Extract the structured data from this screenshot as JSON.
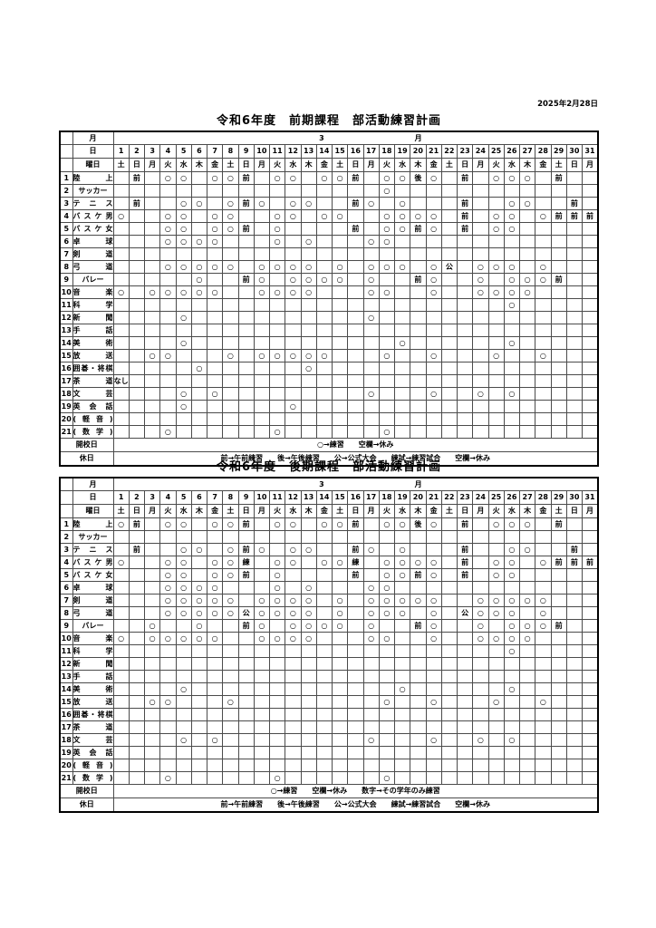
{
  "date_label": "2025年2月28日",
  "labels": {
    "month": "月",
    "day": "日",
    "weekday": "曜日",
    "legend_open": "開校日",
    "legend_holiday": "休日"
  },
  "month": {
    "number": "3",
    "suffix": "月"
  },
  "days": [
    "1",
    "2",
    "3",
    "4",
    "5",
    "6",
    "7",
    "8",
    "9",
    "10",
    "11",
    "12",
    "13",
    "14",
    "15",
    "16",
    "17",
    "18",
    "19",
    "20",
    "21",
    "22",
    "23",
    "24",
    "25",
    "26",
    "27",
    "28",
    "29",
    "30",
    "31"
  ],
  "weekdays": [
    "土",
    "日",
    "月",
    "火",
    "水",
    "木",
    "金",
    "土",
    "日",
    "月",
    "火",
    "水",
    "木",
    "金",
    "土",
    "日",
    "月",
    "火",
    "水",
    "木",
    "金",
    "土",
    "日",
    "月",
    "火",
    "水",
    "木",
    "金",
    "土",
    "日",
    "月"
  ],
  "marks_legend": {
    "circle": "○",
    "morning": "前",
    "afternoon": "後",
    "official": "公",
    "practice_match": "練",
    "none_note": "なし"
  },
  "tables": [
    {
      "title": "令和6年度　前期課程　部活動練習計画",
      "legend_open": "○→練習　　空欄→休み",
      "legend_holiday": "前→午前練習　　後→午後練習　　公→公式大会　　練試→練習試合　　空欄→休み",
      "rows": [
        {
          "num": "1",
          "name": "陸上",
          "align": "justify",
          "cells": {
            "2": "前",
            "4": "○",
            "5": "○",
            "7": "○",
            "8": "○",
            "9": "前",
            "11": "○",
            "12": "○",
            "14": "○",
            "15": "○",
            "16": "前",
            "18": "○",
            "19": "○",
            "20": "後",
            "21": "○",
            "23": "前",
            "25": "○",
            "26": "○",
            "27": "○",
            "29": "前"
          }
        },
        {
          "num": "2",
          "name": "サッカー",
          "align": "center",
          "cells": {
            "18": "○"
          }
        },
        {
          "num": "3",
          "name": "テニス",
          "align": "justify",
          "cells": {
            "2": "前",
            "5": "○",
            "6": "○",
            "8": "○",
            "9": "前",
            "10": "○",
            "12": "○",
            "13": "○",
            "16": "前",
            "17": "○",
            "19": "○",
            "23": "前",
            "26": "○",
            "27": "○",
            "30": "前"
          }
        },
        {
          "num": "4",
          "name": "バスケ男",
          "align": "justify",
          "cells": {
            "1": "○",
            "4": "○",
            "5": "○",
            "7": "○",
            "8": "○",
            "11": "○",
            "12": "○",
            "14": "○",
            "15": "○",
            "18": "○",
            "19": "○",
            "20": "○",
            "21": "○",
            "23": "前",
            "25": "○",
            "26": "○",
            "28": "○",
            "29": "前",
            "30": "前",
            "31": "前"
          }
        },
        {
          "num": "5",
          "name": "バスケ女",
          "align": "justify",
          "cells": {
            "4": "○",
            "5": "○",
            "7": "○",
            "8": "○",
            "9": "前",
            "11": "○",
            "16": "前",
            "18": "○",
            "19": "○",
            "20": "前",
            "21": "○",
            "23": "前",
            "25": "○",
            "26": "○"
          }
        },
        {
          "num": "6",
          "name": "卓球",
          "align": "justify",
          "cells": {
            "4": "○",
            "5": "○",
            "6": "○",
            "7": "○",
            "11": "○",
            "13": "○",
            "17": "○",
            "18": "○"
          }
        },
        {
          "num": "7",
          "name": "剣道",
          "align": "justify",
          "cells": {}
        },
        {
          "num": "8",
          "name": "弓道",
          "align": "justify",
          "cells": {
            "4": "○",
            "5": "○",
            "6": "○",
            "7": "○",
            "8": "○",
            "10": "○",
            "11": "○",
            "12": "○",
            "13": "○",
            "15": "○",
            "17": "○",
            "18": "○",
            "19": "○",
            "21": "○",
            "22": "公",
            "24": "○",
            "25": "○",
            "26": "○",
            "28": "○"
          }
        },
        {
          "num": "9",
          "name": "バレー",
          "align": "center",
          "cells": {
            "6": "○",
            "9": "前",
            "10": "○",
            "12": "○",
            "13": "○",
            "14": "○",
            "15": "○",
            "17": "○",
            "20": "前",
            "21": "○",
            "24": "○",
            "26": "○",
            "27": "○",
            "28": "○",
            "29": "前"
          }
        },
        {
          "num": "10",
          "name": "音楽",
          "align": "justify",
          "cells": {
            "1": "○",
            "3": "○",
            "4": "○",
            "5": "○",
            "6": "○",
            "7": "○",
            "10": "○",
            "11": "○",
            "12": "○",
            "13": "○",
            "17": "○",
            "18": "○",
            "21": "○",
            "24": "○",
            "25": "○",
            "26": "○",
            "27": "○"
          }
        },
        {
          "num": "11",
          "name": "科学",
          "align": "justify",
          "cells": {
            "26": "○"
          }
        },
        {
          "num": "12",
          "name": "新聞",
          "align": "justify",
          "cells": {
            "5": "○",
            "17": "○"
          }
        },
        {
          "num": "13",
          "name": "手話",
          "align": "justify",
          "cells": {}
        },
        {
          "num": "14",
          "name": "美術",
          "align": "justify",
          "cells": {
            "5": "○",
            "19": "○",
            "26": "○"
          }
        },
        {
          "num": "15",
          "name": "放送",
          "align": "justify",
          "cells": {
            "3": "○",
            "4": "○",
            "8": "○",
            "10": "○",
            "11": "○",
            "12": "○",
            "13": "○",
            "14": "○",
            "18": "○",
            "21": "○",
            "25": "○",
            "28": "○"
          }
        },
        {
          "num": "16",
          "name": "囲碁・将棋",
          "align": "justify",
          "cells": {
            "6": "○",
            "13": "○"
          }
        },
        {
          "num": "17",
          "name": "茶道",
          "align": "justify",
          "cells": {
            "1": "なし"
          }
        },
        {
          "num": "18",
          "name": "文芸",
          "align": "justify",
          "cells": {
            "5": "○",
            "7": "○",
            "17": "○",
            "21": "○",
            "24": "○",
            "26": "○"
          }
        },
        {
          "num": "19",
          "name": "英会話",
          "align": "justify",
          "cells": {
            "5": "○",
            "12": "○"
          }
        },
        {
          "num": "20",
          "name": "(軽音)",
          "align": "justify",
          "cells": {}
        },
        {
          "num": "21",
          "name": "(数学)",
          "align": "justify",
          "cells": {
            "4": "○",
            "11": "○",
            "18": "○"
          }
        }
      ]
    },
    {
      "title": "令和6年度　後期課程　部活動練習計画",
      "legend_open": "○→練習　　空欄→休み　　数字→その学年のみ練習",
      "legend_holiday": "前→午前練習　　後→午後練習　　公→公式大会　　練試→練習試合　　空欄→休み",
      "rows": [
        {
          "num": "1",
          "name": "陸上",
          "align": "justify",
          "cells": {
            "1": "○",
            "2": "前",
            "4": "○",
            "5": "○",
            "7": "○",
            "8": "○",
            "9": "前",
            "11": "○",
            "12": "○",
            "14": "○",
            "15": "○",
            "16": "前",
            "18": "○",
            "19": "○",
            "20": "後",
            "21": "○",
            "23": "前",
            "25": "○",
            "26": "○",
            "27": "○",
            "29": "前"
          }
        },
        {
          "num": "2",
          "name": "サッカー",
          "align": "center",
          "cells": {}
        },
        {
          "num": "3",
          "name": "テニス",
          "align": "justify",
          "cells": {
            "2": "前",
            "5": "○",
            "6": "○",
            "8": "○",
            "9": "前",
            "10": "○",
            "12": "○",
            "13": "○",
            "16": "前",
            "17": "○",
            "19": "○",
            "23": "前",
            "26": "○",
            "27": "○",
            "30": "前"
          }
        },
        {
          "num": "4",
          "name": "バスケ男",
          "align": "justify",
          "cells": {
            "1": "○",
            "4": "○",
            "5": "○",
            "7": "○",
            "8": "○",
            "9": "練",
            "11": "○",
            "12": "○",
            "14": "○",
            "15": "○",
            "16": "練",
            "18": "○",
            "19": "○",
            "20": "○",
            "21": "○",
            "23": "前",
            "25": "○",
            "26": "○",
            "28": "○",
            "29": "前",
            "30": "前",
            "31": "前"
          }
        },
        {
          "num": "5",
          "name": "バスケ女",
          "align": "justify",
          "cells": {
            "4": "○",
            "5": "○",
            "7": "○",
            "8": "○",
            "9": "前",
            "11": "○",
            "16": "前",
            "18": "○",
            "19": "○",
            "20": "前",
            "21": "○",
            "23": "前",
            "25": "○",
            "26": "○"
          }
        },
        {
          "num": "6",
          "name": "卓球",
          "align": "justify",
          "cells": {
            "4": "○",
            "5": "○",
            "6": "○",
            "7": "○",
            "11": "○",
            "13": "○",
            "17": "○",
            "18": "○"
          }
        },
        {
          "num": "7",
          "name": "剣道",
          "align": "justify",
          "cells": {
            "4": "○",
            "5": "○",
            "6": "○",
            "7": "○",
            "8": "○",
            "10": "○",
            "11": "○",
            "12": "○",
            "13": "○",
            "15": "○",
            "17": "○",
            "18": "○",
            "19": "○",
            "20": "○",
            "21": "○",
            "24": "○",
            "25": "○",
            "26": "○",
            "27": "○",
            "28": "○"
          }
        },
        {
          "num": "8",
          "name": "弓道",
          "align": "justify",
          "cells": {
            "4": "○",
            "5": "○",
            "6": "○",
            "7": "○",
            "8": "○",
            "9": "公",
            "10": "○",
            "11": "○",
            "12": "○",
            "13": "○",
            "15": "○",
            "17": "○",
            "18": "○",
            "19": "○",
            "21": "○",
            "23": "公",
            "24": "○",
            "25": "○",
            "26": "○",
            "28": "○"
          }
        },
        {
          "num": "9",
          "name": "バレー",
          "align": "center",
          "cells": {
            "3": "○",
            "6": "○",
            "9": "前",
            "10": "○",
            "12": "○",
            "13": "○",
            "14": "○",
            "15": "○",
            "17": "○",
            "20": "前",
            "21": "○",
            "24": "○",
            "26": "○",
            "27": "○",
            "28": "○",
            "29": "前"
          }
        },
        {
          "num": "10",
          "name": "音楽",
          "align": "justify",
          "cells": {
            "1": "○",
            "3": "○",
            "4": "○",
            "5": "○",
            "6": "○",
            "7": "○",
            "10": "○",
            "11": "○",
            "12": "○",
            "13": "○",
            "17": "○",
            "18": "○",
            "21": "○",
            "24": "○",
            "25": "○",
            "26": "○",
            "27": "○"
          }
        },
        {
          "num": "11",
          "name": "科学",
          "align": "justify",
          "cells": {
            "26": "○"
          }
        },
        {
          "num": "12",
          "name": "新聞",
          "align": "justify",
          "cells": {}
        },
        {
          "num": "13",
          "name": "手話",
          "align": "justify",
          "cells": {}
        },
        {
          "num": "14",
          "name": "美術",
          "align": "justify",
          "cells": {
            "5": "○",
            "19": "○",
            "26": "○"
          }
        },
        {
          "num": "15",
          "name": "放送",
          "align": "justify",
          "cells": {
            "3": "○",
            "4": "○",
            "8": "○",
            "18": "○",
            "21": "○",
            "25": "○",
            "28": "○"
          }
        },
        {
          "num": "16",
          "name": "囲碁・将棋",
          "align": "justify",
          "cells": {}
        },
        {
          "num": "17",
          "name": "茶道",
          "align": "justify",
          "cells": {}
        },
        {
          "num": "18",
          "name": "文芸",
          "align": "justify",
          "cells": {
            "5": "○",
            "7": "○",
            "17": "○",
            "21": "○",
            "24": "○",
            "26": "○"
          }
        },
        {
          "num": "19",
          "name": "英会話",
          "align": "justify",
          "cells": {}
        },
        {
          "num": "20",
          "name": "(軽音)",
          "align": "justify",
          "cells": {}
        },
        {
          "num": "21",
          "name": "(数学)",
          "align": "justify",
          "cells": {
            "4": "○",
            "11": "○",
            "18": "○"
          }
        }
      ]
    }
  ]
}
